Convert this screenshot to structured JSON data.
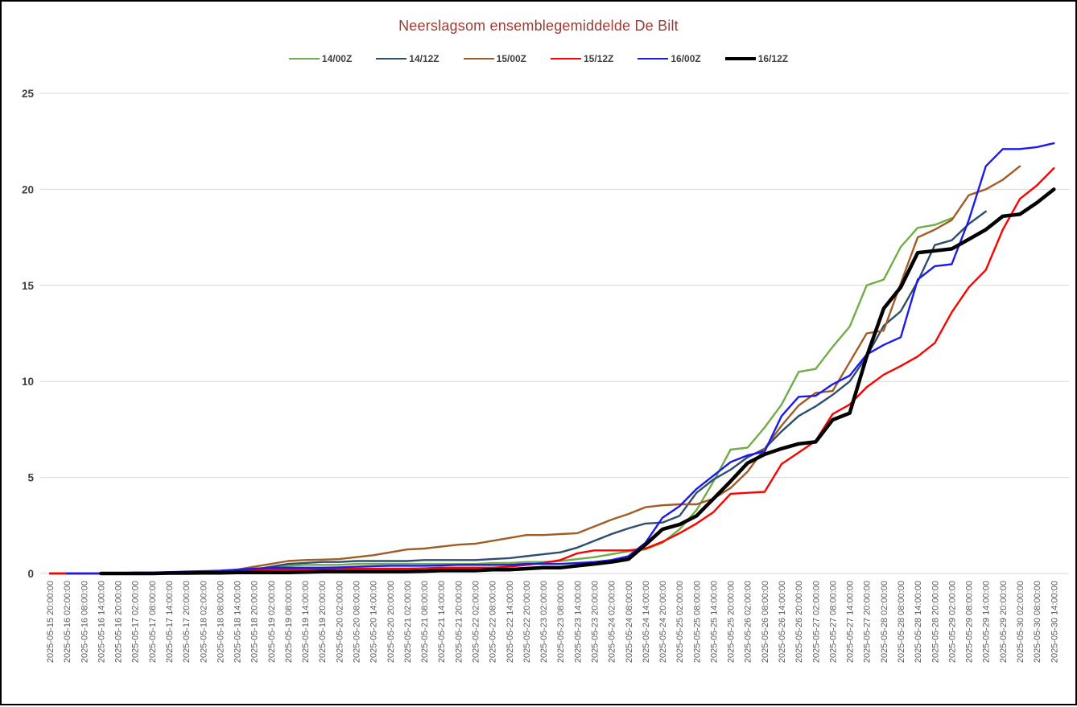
{
  "chart_data": {
    "type": "line",
    "title": "Neerslagsom ensemblegemiddelde De Bilt",
    "title_color": "#9E3B32",
    "ylabel": "",
    "xlabel": "",
    "ylim": [
      0,
      25
    ],
    "y_ticks": [
      0,
      5,
      10,
      15,
      20,
      25
    ],
    "grid": "horizontal",
    "gridline_color": "#D9D9D9",
    "legend_position": "top",
    "x_labels": [
      "2025-05-15 20:00:00",
      "2025-05-16 02:00:00",
      "2025-05-16 08:00:00",
      "2025-05-16 14:00:00",
      "2025-05-16 20:00:00",
      "2025-05-17 02:00:00",
      "2025-05-17 08:00:00",
      "2025-05-17 14:00:00",
      "2025-05-17 20:00:00",
      "2025-05-18 02:00:00",
      "2025-05-18 08:00:00",
      "2025-05-18 14:00:00",
      "2025-05-18 20:00:00",
      "2025-05-19 02:00:00",
      "2025-05-19 08:00:00",
      "2025-05-19 14:00:00",
      "2025-05-19 20:00:00",
      "2025-05-20 02:00:00",
      "2025-05-20 08:00:00",
      "2025-05-20 14:00:00",
      "2025-05-20 20:00:00",
      "2025-05-21 02:00:00",
      "2025-05-21 08:00:00",
      "2025-05-21 14:00:00",
      "2025-05-21 20:00:00",
      "2025-05-22 02:00:00",
      "2025-05-22 08:00:00",
      "2025-05-22 14:00:00",
      "2025-05-22 20:00:00",
      "2025-05-23 02:00:00",
      "2025-05-23 08:00:00",
      "2025-05-23 14:00:00",
      "2025-05-23 20:00:00",
      "2025-05-24 02:00:00",
      "2025-05-24 08:00:00",
      "2025-05-24 14:00:00",
      "2025-05-24 20:00:00",
      "2025-05-25 02:00:00",
      "2025-05-25 08:00:00",
      "2025-05-25 14:00:00",
      "2025-05-25 20:00:00",
      "2025-05-26 02:00:00",
      "2025-05-26 08:00:00",
      "2025-05-26 14:00:00",
      "2025-05-26 20:00:00",
      "2025-05-27 02:00:00",
      "2025-05-27 08:00:00",
      "2025-05-27 14:00:00",
      "2025-05-27 20:00:00",
      "2025-05-28 02:00:00",
      "2025-05-28 08:00:00",
      "2025-05-28 14:00:00",
      "2025-05-28 20:00:00",
      "2025-05-29 02:00:00",
      "2025-05-29 08:00:00",
      "2025-05-29 14:00:00",
      "2025-05-29 20:00:00",
      "2025-05-30 02:00:00",
      "2025-05-30 08:00:00",
      "2025-05-30 14:00:00"
    ],
    "series": [
      {
        "name": "14/00Z",
        "color": "#70AD47",
        "width": 2.4,
        "values": [
          0,
          0,
          0,
          0,
          0,
          0,
          0.02,
          0.03,
          0.03,
          0.03,
          0.05,
          0.1,
          0.2,
          0.3,
          0.4,
          0.45,
          0.45,
          0.45,
          0.5,
          0.5,
          0.5,
          0.5,
          0.5,
          0.5,
          0.5,
          0.5,
          0.55,
          0.55,
          0.6,
          0.6,
          0.65,
          0.75,
          0.85,
          1.0,
          1.15,
          1.25,
          1.6,
          2.3,
          3.3,
          4.8,
          6.45,
          6.55,
          7.6,
          8.8,
          10.5,
          10.65,
          11.8,
          12.85,
          15.0,
          15.3,
          17.0,
          18.0,
          18.15,
          18.5,
          null,
          null,
          null,
          null,
          null,
          null
        ]
      },
      {
        "name": "14/12Z",
        "color": "#2E4E6F",
        "width": 2.4,
        "values": [
          0,
          0,
          0,
          0,
          0,
          0,
          0.02,
          0.03,
          0.03,
          0.03,
          0.05,
          0.1,
          0.2,
          0.35,
          0.5,
          0.55,
          0.6,
          0.6,
          0.65,
          0.65,
          0.65,
          0.65,
          0.7,
          0.7,
          0.7,
          0.7,
          0.75,
          0.8,
          0.9,
          1.0,
          1.1,
          1.35,
          1.7,
          2.05,
          2.35,
          2.6,
          2.65,
          3.0,
          4.2,
          4.9,
          5.4,
          6.05,
          6.5,
          7.4,
          8.2,
          8.7,
          9.3,
          10.0,
          11.3,
          12.9,
          13.65,
          15.2,
          17.1,
          17.35,
          18.2,
          18.85,
          null,
          null,
          null,
          null
        ]
      },
      {
        "name": "15/00Z",
        "color": "#A25B25",
        "width": 2.4,
        "values": [
          0,
          0,
          0,
          0,
          0,
          0,
          0,
          0.02,
          0.02,
          0.05,
          0.1,
          0.2,
          0.35,
          0.5,
          0.65,
          0.7,
          0.72,
          0.75,
          0.85,
          0.95,
          1.1,
          1.25,
          1.3,
          1.4,
          1.5,
          1.55,
          1.7,
          1.85,
          2.0,
          2.0,
          2.05,
          2.1,
          2.45,
          2.8,
          3.1,
          3.45,
          3.55,
          3.6,
          3.6,
          3.9,
          4.45,
          5.3,
          6.5,
          7.7,
          8.75,
          9.4,
          9.5,
          11.0,
          12.5,
          12.65,
          15.1,
          17.5,
          17.9,
          18.4,
          19.7,
          20.0,
          20.5,
          21.2,
          null,
          null
        ]
      },
      {
        "name": "15/12Z",
        "color": "#FF0000",
        "width": 2.4,
        "values": [
          0,
          0,
          0,
          0,
          0,
          0,
          0,
          0,
          0,
          0.02,
          0.05,
          0.1,
          0.15,
          0.2,
          0.2,
          0.2,
          0.22,
          0.25,
          0.25,
          0.25,
          0.25,
          0.25,
          0.27,
          0.3,
          0.3,
          0.3,
          0.3,
          0.35,
          0.45,
          0.55,
          0.7,
          1.05,
          1.2,
          1.2,
          1.2,
          1.3,
          1.65,
          2.1,
          2.6,
          3.2,
          4.15,
          4.2,
          4.25,
          5.7,
          6.3,
          6.9,
          8.3,
          8.8,
          9.7,
          10.35,
          10.8,
          11.3,
          12.0,
          13.6,
          14.9,
          15.8,
          17.9,
          19.5,
          20.2,
          21.1
        ]
      },
      {
        "name": "16/00Z",
        "color": "#1A1AF0",
        "width": 2.4,
        "values": [
          null,
          0,
          0,
          0,
          0.02,
          0.05,
          0.05,
          0.07,
          0.1,
          0.12,
          0.15,
          0.2,
          0.25,
          0.3,
          0.3,
          0.3,
          0.3,
          0.32,
          0.35,
          0.38,
          0.4,
          0.4,
          0.4,
          0.42,
          0.45,
          0.45,
          0.45,
          0.45,
          0.5,
          0.5,
          0.5,
          0.55,
          0.6,
          0.7,
          0.9,
          1.6,
          2.9,
          3.5,
          4.4,
          5.1,
          5.8,
          6.15,
          6.35,
          8.2,
          9.2,
          9.25,
          9.85,
          10.3,
          11.4,
          11.9,
          12.3,
          15.3,
          16.0,
          16.1,
          18.4,
          21.2,
          22.1,
          22.1,
          22.2,
          22.4
        ]
      },
      {
        "name": "16/12Z",
        "color": "#000000",
        "width": 4.5,
        "values": [
          null,
          null,
          null,
          0,
          0,
          0,
          0,
          0.02,
          0.02,
          0.03,
          0.03,
          0.05,
          0.05,
          0.05,
          0.05,
          0.07,
          0.1,
          0.1,
          0.1,
          0.1,
          0.1,
          0.1,
          0.12,
          0.15,
          0.15,
          0.15,
          0.2,
          0.2,
          0.25,
          0.3,
          0.3,
          0.4,
          0.5,
          0.6,
          0.75,
          1.5,
          2.3,
          2.55,
          3.0,
          3.9,
          4.8,
          5.75,
          6.2,
          6.5,
          6.75,
          6.85,
          8.0,
          8.35,
          11.3,
          13.8,
          14.9,
          16.7,
          16.8,
          16.9,
          17.4,
          17.9,
          18.6,
          18.7,
          19.3,
          20.0
        ]
      }
    ]
  }
}
